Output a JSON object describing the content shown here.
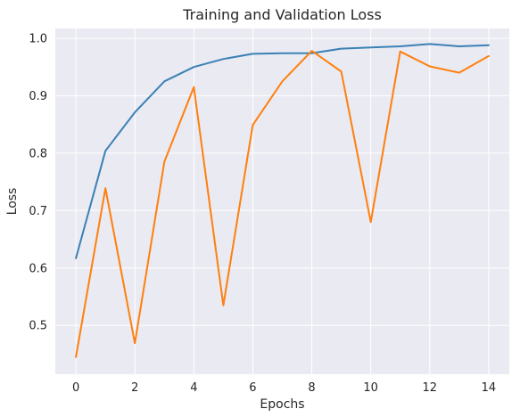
{
  "chart_data": {
    "type": "line",
    "title": "Training and Validation Loss",
    "xlabel": "Epochs",
    "ylabel": "Loss",
    "x": [
      0,
      1,
      2,
      3,
      4,
      5,
      6,
      7,
      8,
      9,
      10,
      11,
      12,
      13,
      14
    ],
    "xlim": [
      -0.7,
      14.7
    ],
    "ylim": [
      0.415,
      1.017
    ],
    "xticks": [
      0,
      2,
      4,
      6,
      8,
      10,
      12,
      14
    ],
    "yticks": [
      0.5,
      0.6,
      0.7,
      0.8,
      0.9,
      1.0
    ],
    "xtick_labels": [
      "0",
      "2",
      "4",
      "6",
      "8",
      "10",
      "12",
      "14"
    ],
    "ytick_labels": [
      "0.5",
      "0.6",
      "0.7",
      "0.8",
      "0.9",
      "1.0"
    ],
    "grid": true,
    "legend": "none",
    "series": [
      {
        "color": "#3a81b5",
        "values": [
          0.617,
          0.804,
          0.871,
          0.925,
          0.95,
          0.964,
          0.973,
          0.974,
          0.974,
          0.982,
          0.984,
          0.986,
          0.99,
          0.986,
          0.988
        ]
      },
      {
        "color": "#ff7f0e",
        "values": [
          0.445,
          0.739,
          0.469,
          0.785,
          0.915,
          0.535,
          0.849,
          0.925,
          0.978,
          0.942,
          0.68,
          0.977,
          0.951,
          0.94,
          0.969
        ]
      }
    ],
    "background_color": "#eaeaf2",
    "grid_color": "#ffffff"
  }
}
